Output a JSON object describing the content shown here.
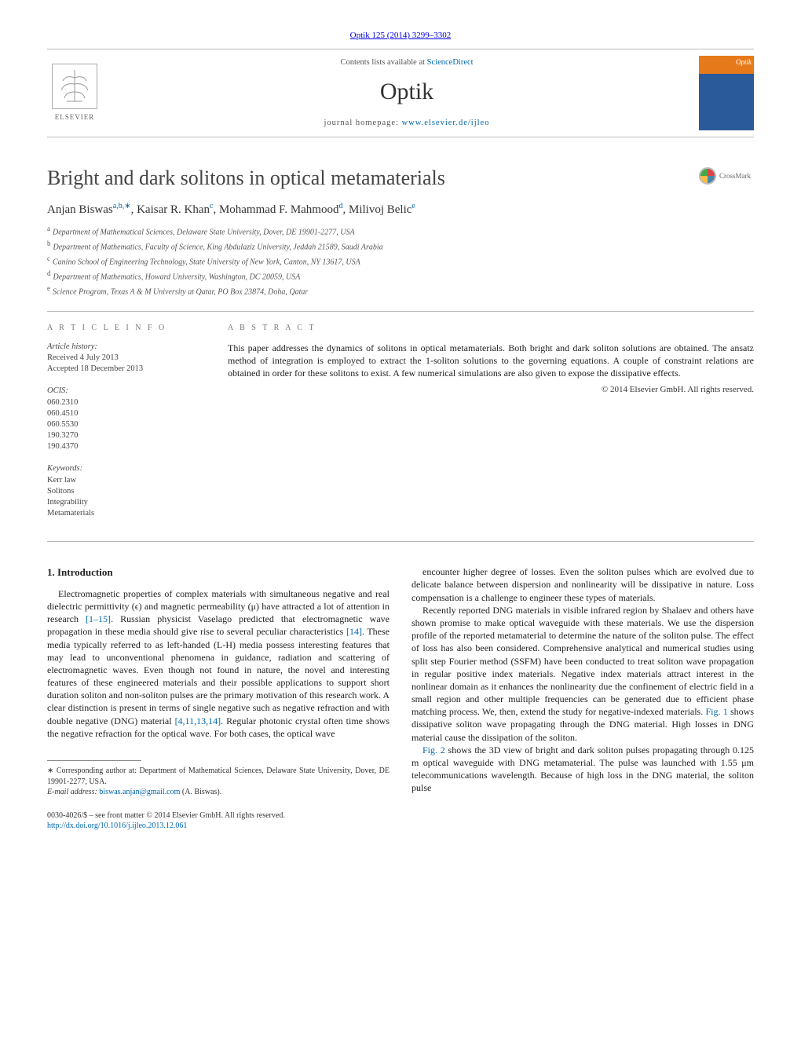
{
  "top_ref": {
    "journal": "Optik",
    "vol_pages": "125 (2014) 3299–3302",
    "journal_link": "Optik 125 (2014) 3299–3302"
  },
  "header": {
    "contents_prefix": "Contents lists available at ",
    "contents_link": "ScienceDirect",
    "journal_name": "Optik",
    "homepage_prefix": "journal homepage: ",
    "homepage_url": "www.elsevier.de/ijleo",
    "elsevier_label": "ELSEVIER",
    "cover_label": "Optik"
  },
  "paper": {
    "title": "Bright and dark solitons in optical metamaterials",
    "crossmark": "CrossMark",
    "authors_html": [
      {
        "name": "Anjan Biswas",
        "sup": "a,b,∗"
      },
      {
        "name": "Kaisar R. Khan",
        "sup": "c"
      },
      {
        "name": "Mohammad F. Mahmood",
        "sup": "d"
      },
      {
        "name": "Milivoj Belic",
        "sup": "e"
      }
    ],
    "affiliations": [
      {
        "key": "a",
        "text": "Department of Mathematical Sciences, Delaware State University, Dover, DE 19901-2277, USA"
      },
      {
        "key": "b",
        "text": "Department of Mathematics, Faculty of Science, King Abdulaziz University, Jeddah 21589, Saudi Arabia"
      },
      {
        "key": "c",
        "text": "Canino School of Engineering Technology, State University of New York, Canton, NY 13617, USA"
      },
      {
        "key": "d",
        "text": "Department of Mathematics, Howard University, Washington, DC 20059, USA"
      },
      {
        "key": "e",
        "text": "Science Program, Texas A & M University at Qatar, PO Box 23874, Doha, Qatar"
      }
    ]
  },
  "article_info": {
    "label": "a r t i c l e   i n f o",
    "history_hdr": "Article history:",
    "history": [
      "Received 4 July 2013",
      "Accepted 18 December 2013"
    ],
    "ocis_hdr": "OCIS:",
    "ocis": [
      "060.2310",
      "060.4510",
      "060.5530",
      "190.3270",
      "190.4370"
    ],
    "keywords_hdr": "Keywords:",
    "keywords": [
      "Kerr law",
      "Solitons",
      "Integrability",
      "Metamaterials"
    ]
  },
  "abstract": {
    "label": "a b s t r a c t",
    "text": "This paper addresses the dynamics of solitons in optical metamaterials. Both bright and dark soliton solutions are obtained. The ansatz method of integration is employed to extract the 1-soliton solutions to the governing equations. A couple of constraint relations are obtained in order for these solitons to exist. A few numerical simulations are also given to expose the dissipative effects.",
    "copyright": "© 2014 Elsevier GmbH. All rights reserved."
  },
  "section1": {
    "num_title": "1.  Introduction",
    "para1": "Electromagnetic properties of complex materials with simultaneous negative and real dielectric permittivity (ϵ) and magnetic permeability (μ) have attracted a lot of attention in research [1–15]. Russian physicist Vaselago predicted that electromagnetic wave propagation in these media should give rise to several peculiar characteristics [14]. These media typically referred to as left-handed (L-H) media possess interesting features that may lead to unconventional phenomena in guidance, radiation and scattering of electromagnetic waves. Even though not found in nature, the novel and interesting features of these engineered materials and their possible applications to support short duration soliton and non-soliton pulses are the primary motivation of this research work. A clear distinction is present in terms of single negative such as negative refraction and with double negative (DNG) material [4,11,13,14]. Regular photonic crystal often time shows the negative refraction for the optical wave. For both cases, the optical wave",
    "para2": "encounter higher degree of losses. Even the soliton pulses which are evolved due to delicate balance between dispersion and nonlinearity will be dissipative in nature. Loss compensation is a challenge to engineer these types of materials.",
    "para3": "Recently reported DNG materials in visible infrared region by Shalaev and others have shown promise to make optical waveguide with these materials. We use the dispersion profile of the reported metamaterial to determine the nature of the soliton pulse. The effect of loss has also been considered. Comprehensive analytical and numerical studies using split step Fourier method (SSFM) have been conducted to treat soliton wave propagation in regular positive index materials. Negative index materials attract interest in the nonlinear domain as it enhances the nonlinearity due the confinement of electric field in a small region and other multiple frequencies can be generated due to efficient phase matching process. We, then, extend the study for negative-indexed materials. Fig. 1 shows dissipative soliton wave propagating through the DNG material. High losses in DNG material cause the dissipation of the soliton.",
    "para4": "Fig. 2 shows the 3D view of bright and dark soliton pulses propagating through 0.125 m optical waveguide with DNG metamaterial. The pulse was launched with 1.55 μm telecommunications wavelength. Because of high loss in the DNG material, the soliton pulse",
    "ref_links": {
      "r1": "[1–15]",
      "r14": "[14]",
      "r4": "[4,11,13,14]",
      "fig1": "Fig. 1",
      "fig2": "Fig. 2"
    }
  },
  "footnote": {
    "corr_prefix": "∗ Corresponding author at: Department of Mathematical Sciences, Delaware State University, Dover, DE 19901-2277, USA.",
    "email_label": "E-mail address: ",
    "email": "biswas.anjan@gmail.com",
    "email_who": " (A. Biswas)."
  },
  "bottom": {
    "issn": "0030-4026/$ – see front matter © 2014 Elsevier GmbH. All rights reserved.",
    "doi": "http://dx.doi.org/10.1016/j.ijleo.2013.12.061"
  },
  "colors": {
    "link": "#0066aa",
    "rule": "#bbbbbb",
    "cover_orange": "#e67a1a",
    "cover_blue": "#2a5a9a"
  }
}
